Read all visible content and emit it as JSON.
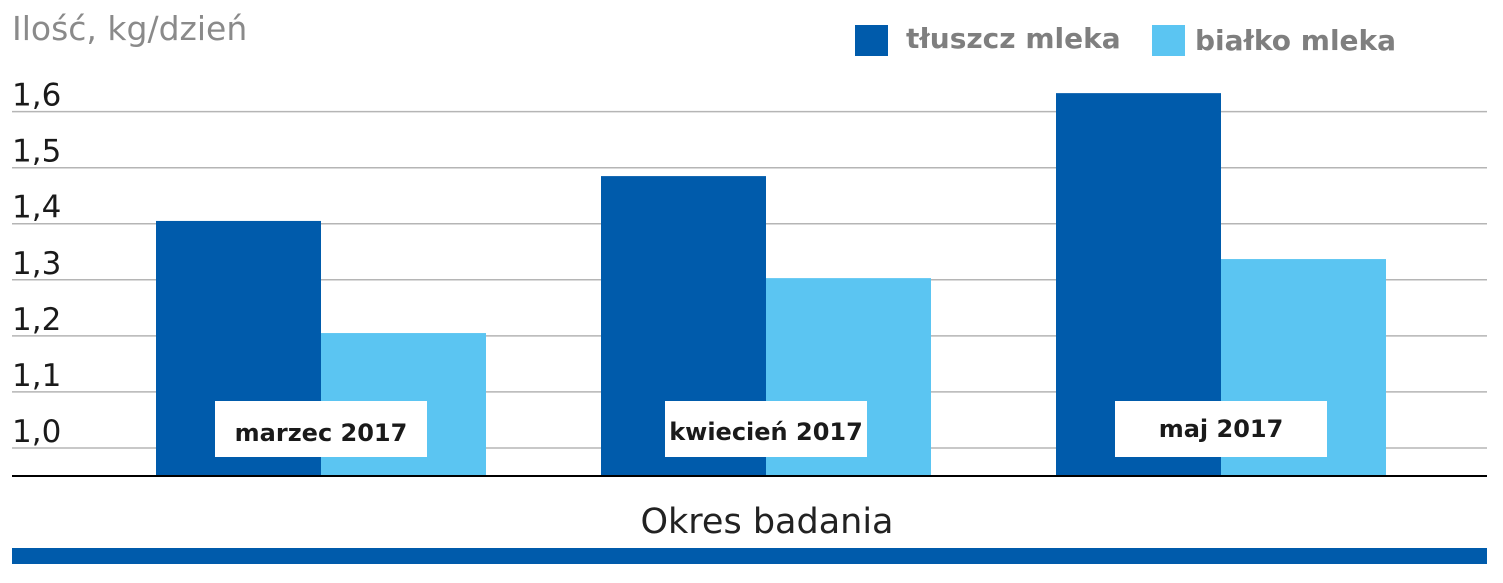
{
  "chart_data": {
    "type": "bar",
    "ylabel": "Ilość, kg/dzień",
    "xlabel": "Okres badania",
    "categories": [
      "marzec 2017",
      "kwiecień 2017",
      "maj 2017"
    ],
    "series": [
      {
        "name": "tłuszcz mleka",
        "values": [
          1.405,
          1.485,
          1.633
        ],
        "color": "#005bab"
      },
      {
        "name": "białko mleka",
        "values": [
          1.205,
          1.303,
          1.337
        ],
        "color": "#5bc5f2"
      }
    ],
    "yticks": [
      "1,0",
      "1,1",
      "1,2",
      "1,3",
      "1,4",
      "1,5",
      "1,6"
    ],
    "ylim": [
      0.95,
      1.66
    ],
    "grid": true,
    "legend_position": "top-right"
  },
  "colors": {
    "accent_bar": "#005bab",
    "gridline": "#b5b5b5",
    "axis": "#000000"
  }
}
